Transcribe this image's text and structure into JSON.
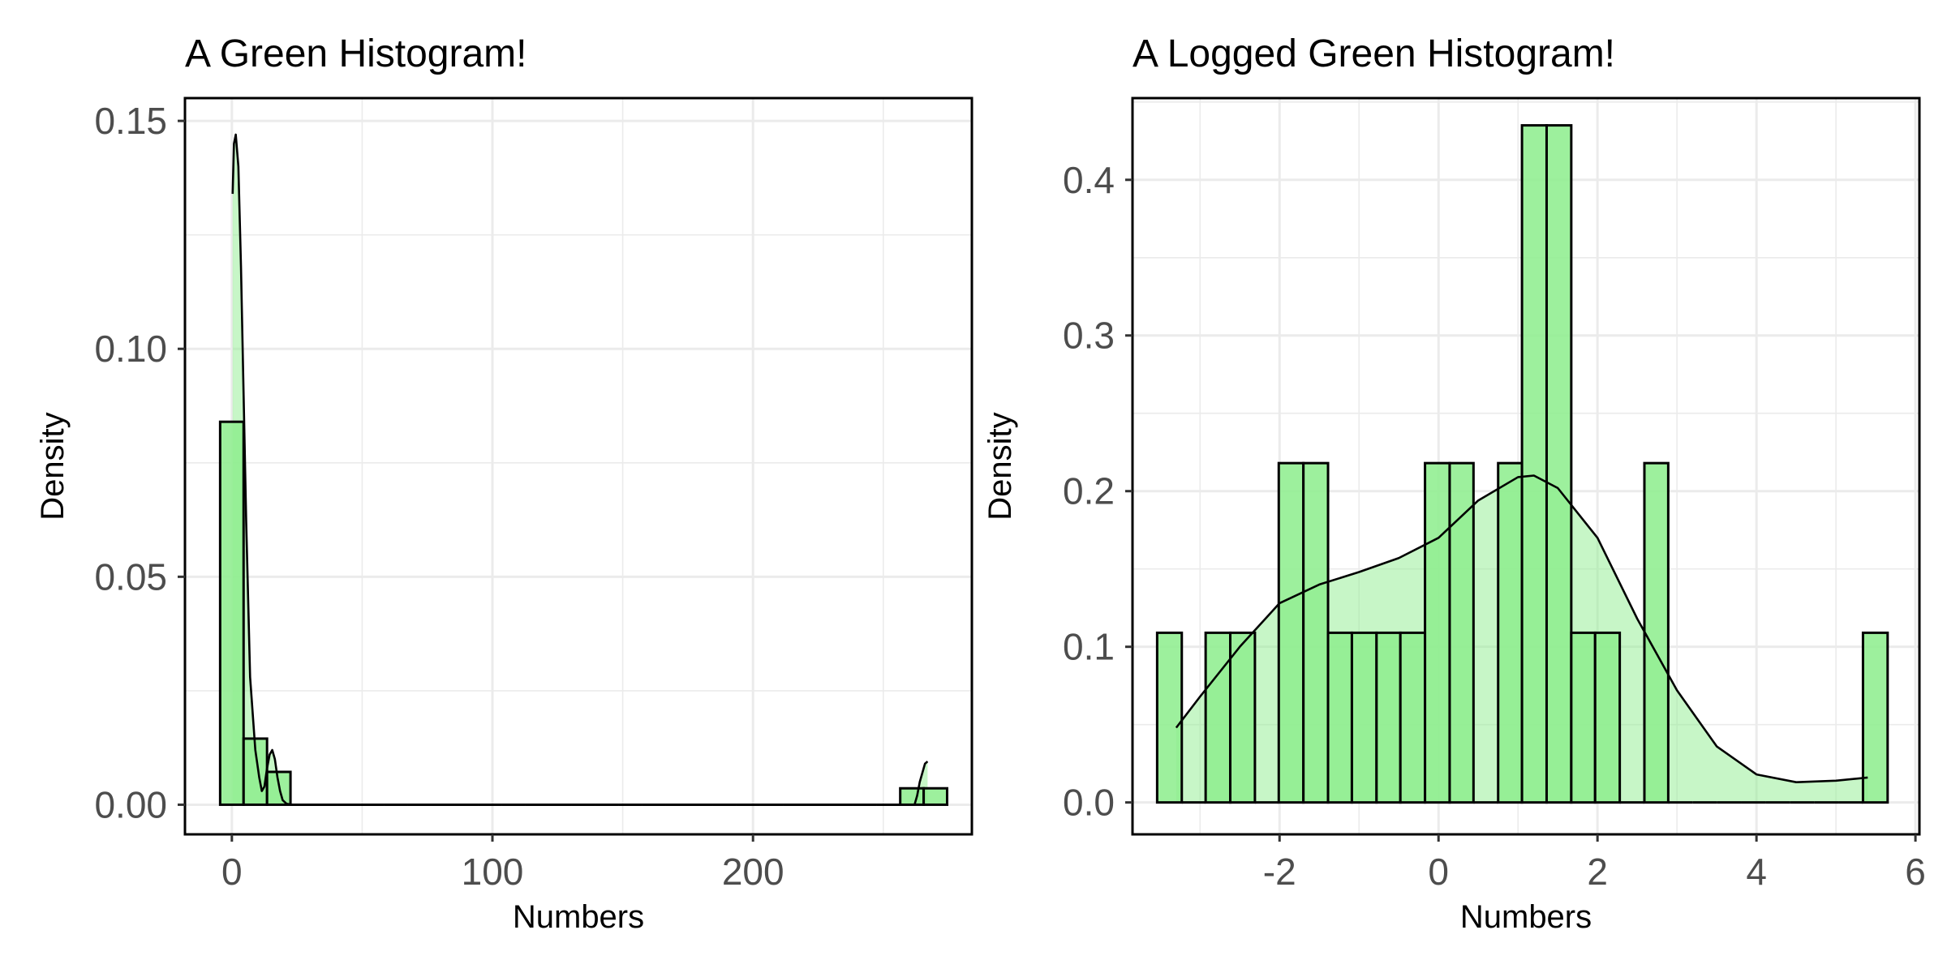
{
  "colors": {
    "bar_fill": "#90EE90",
    "density_fill": "#90EE90",
    "outline": "#000000",
    "grid": "#EBEBEB",
    "tick_text": "#4D4D4D",
    "background": "#FFFFFF"
  },
  "chart_data": [
    {
      "type": "bar",
      "title": "A Green Histogram!",
      "xlabel": "Numbers",
      "ylabel": "Density",
      "xlim": [
        -18,
        284
      ],
      "ylim": [
        -0.0065,
        0.155
      ],
      "xticks": [
        0,
        100,
        200
      ],
      "xtick_labels": [
        "0",
        "100",
        "200"
      ],
      "yticks": [
        0,
        0.05,
        0.1,
        0.15
      ],
      "ytick_labels": [
        "0.00",
        "0.05",
        "0.10",
        "0.15"
      ],
      "grid": true,
      "bins": [
        {
          "x0": -4.5,
          "x1": 4.5,
          "density": 0.084
        },
        {
          "x0": 4.5,
          "x1": 13.5,
          "density": 0.0145
        },
        {
          "x0": 13.5,
          "x1": 22.5,
          "density": 0.0072
        },
        {
          "x0": 22.5,
          "x1": 31.5,
          "density": 0
        },
        {
          "x0": 31.5,
          "x1": 40.5,
          "density": 0
        },
        {
          "x0": 40.5,
          "x1": 49.5,
          "density": 0
        },
        {
          "x0": 49.5,
          "x1": 58.5,
          "density": 0
        },
        {
          "x0": 58.5,
          "x1": 67.5,
          "density": 0
        },
        {
          "x0": 67.5,
          "x1": 76.5,
          "density": 0
        },
        {
          "x0": 76.5,
          "x1": 85.5,
          "density": 0
        },
        {
          "x0": 85.5,
          "x1": 94.5,
          "density": 0
        },
        {
          "x0": 94.5,
          "x1": 103.5,
          "density": 0
        },
        {
          "x0": 103.5,
          "x1": 112.5,
          "density": 0
        },
        {
          "x0": 112.5,
          "x1": 121.5,
          "density": 0
        },
        {
          "x0": 121.5,
          "x1": 130.5,
          "density": 0
        },
        {
          "x0": 130.5,
          "x1": 139.5,
          "density": 0
        },
        {
          "x0": 139.5,
          "x1": 148.5,
          "density": 0
        },
        {
          "x0": 148.5,
          "x1": 157.5,
          "density": 0
        },
        {
          "x0": 157.5,
          "x1": 166.5,
          "density": 0
        },
        {
          "x0": 166.5,
          "x1": 175.5,
          "density": 0
        },
        {
          "x0": 175.5,
          "x1": 184.5,
          "density": 0
        },
        {
          "x0": 184.5,
          "x1": 193.5,
          "density": 0
        },
        {
          "x0": 193.5,
          "x1": 202.5,
          "density": 0
        },
        {
          "x0": 202.5,
          "x1": 211.5,
          "density": 0
        },
        {
          "x0": 211.5,
          "x1": 220.5,
          "density": 0
        },
        {
          "x0": 220.5,
          "x1": 229.5,
          "density": 0
        },
        {
          "x0": 229.5,
          "x1": 238.5,
          "density": 0
        },
        {
          "x0": 238.5,
          "x1": 247.5,
          "density": 0
        },
        {
          "x0": 247.5,
          "x1": 256.5,
          "density": 0
        },
        {
          "x0": 256.5,
          "x1": 265.5,
          "density": 0.0036
        },
        {
          "x0": 265.5,
          "x1": 274.5,
          "density": 0.0036
        }
      ],
      "density_curve": {
        "x": [
          0.3,
          0.8,
          1.5,
          2.5,
          3.5,
          4.5,
          5.5,
          7,
          9,
          10.5,
          11.5,
          12.5,
          13.5,
          14.5,
          15.5,
          16.5,
          17.5,
          18.5,
          19.5,
          21,
          23,
          30,
          100,
          200,
          255,
          262,
          263,
          264,
          265,
          266,
          267
        ],
        "y": [
          0.134,
          0.145,
          0.147,
          0.14,
          0.118,
          0.09,
          0.062,
          0.028,
          0.012,
          0.006,
          0.003,
          0.004,
          0.008,
          0.011,
          0.012,
          0.01,
          0.006,
          0.003,
          0.001,
          0.0002,
          0,
          0,
          0,
          0,
          0,
          0,
          0.002,
          0.005,
          0.007,
          0.009,
          0.0095
        ]
      }
    },
    {
      "type": "bar",
      "title": "A Logged Green Histogram!",
      "xlabel": "Numbers",
      "ylabel": "Density",
      "xlim": [
        -3.85,
        6.05
      ],
      "ylim": [
        -0.0205,
        0.4525
      ],
      "xticks": [
        -2,
        0,
        2,
        4,
        6
      ],
      "xtick_labels": [
        "-2",
        "0",
        "2",
        "4",
        "6"
      ],
      "yticks": [
        0,
        0.1,
        0.2,
        0.3,
        0.4
      ],
      "ytick_labels": [
        "0.0",
        "0.1",
        "0.2",
        "0.3",
        "0.4"
      ],
      "grid": true,
      "bins": [
        {
          "x0": -3.54,
          "x1": -3.23,
          "density": 0.109
        },
        {
          "x0": -3.23,
          "x1": -2.93,
          "density": 0
        },
        {
          "x0": -2.93,
          "x1": -2.62,
          "density": 0.109
        },
        {
          "x0": -2.62,
          "x1": -2.31,
          "density": 0.109
        },
        {
          "x0": -2.31,
          "x1": -2.01,
          "density": 0
        },
        {
          "x0": -2.01,
          "x1": -1.7,
          "density": 0.218
        },
        {
          "x0": -1.7,
          "x1": -1.39,
          "density": 0.218
        },
        {
          "x0": -1.39,
          "x1": -1.09,
          "density": 0.109
        },
        {
          "x0": -1.09,
          "x1": -0.78,
          "density": 0.109
        },
        {
          "x0": -0.78,
          "x1": -0.48,
          "density": 0.109
        },
        {
          "x0": -0.48,
          "x1": -0.17,
          "density": 0.109
        },
        {
          "x0": -0.17,
          "x1": 0.14,
          "density": 0.218
        },
        {
          "x0": 0.14,
          "x1": 0.44,
          "density": 0.218
        },
        {
          "x0": 0.44,
          "x1": 0.75,
          "density": 0
        },
        {
          "x0": 0.75,
          "x1": 1.05,
          "density": 0.218
        },
        {
          "x0": 1.05,
          "x1": 1.36,
          "density": 0.435
        },
        {
          "x0": 1.36,
          "x1": 1.67,
          "density": 0.435
        },
        {
          "x0": 1.67,
          "x1": 1.97,
          "density": 0.109
        },
        {
          "x0": 1.97,
          "x1": 2.28,
          "density": 0.109
        },
        {
          "x0": 2.28,
          "x1": 2.59,
          "density": 0
        },
        {
          "x0": 2.59,
          "x1": 2.89,
          "density": 0.218
        },
        {
          "x0": 2.89,
          "x1": 3.2,
          "density": 0
        },
        {
          "x0": 3.2,
          "x1": 3.5,
          "density": 0
        },
        {
          "x0": 3.5,
          "x1": 3.81,
          "density": 0
        },
        {
          "x0": 3.81,
          "x1": 4.12,
          "density": 0
        },
        {
          "x0": 4.12,
          "x1": 4.42,
          "density": 0
        },
        {
          "x0": 4.42,
          "x1": 4.73,
          "density": 0
        },
        {
          "x0": 4.73,
          "x1": 5.03,
          "density": 0
        },
        {
          "x0": 5.03,
          "x1": 5.34,
          "density": 0
        },
        {
          "x0": 5.34,
          "x1": 5.65,
          "density": 0.109
        }
      ],
      "density_curve": {
        "x": [
          -3.3,
          -3,
          -2.5,
          -2,
          -1.5,
          -1,
          -0.5,
          0,
          0.5,
          1,
          1.2,
          1.5,
          2,
          2.5,
          3,
          3.5,
          4,
          4.5,
          5,
          5.4
        ],
        "y": [
          0.048,
          0.068,
          0.1,
          0.128,
          0.14,
          0.148,
          0.157,
          0.17,
          0.194,
          0.209,
          0.21,
          0.202,
          0.17,
          0.118,
          0.072,
          0.036,
          0.018,
          0.013,
          0.014,
          0.016
        ]
      }
    }
  ]
}
